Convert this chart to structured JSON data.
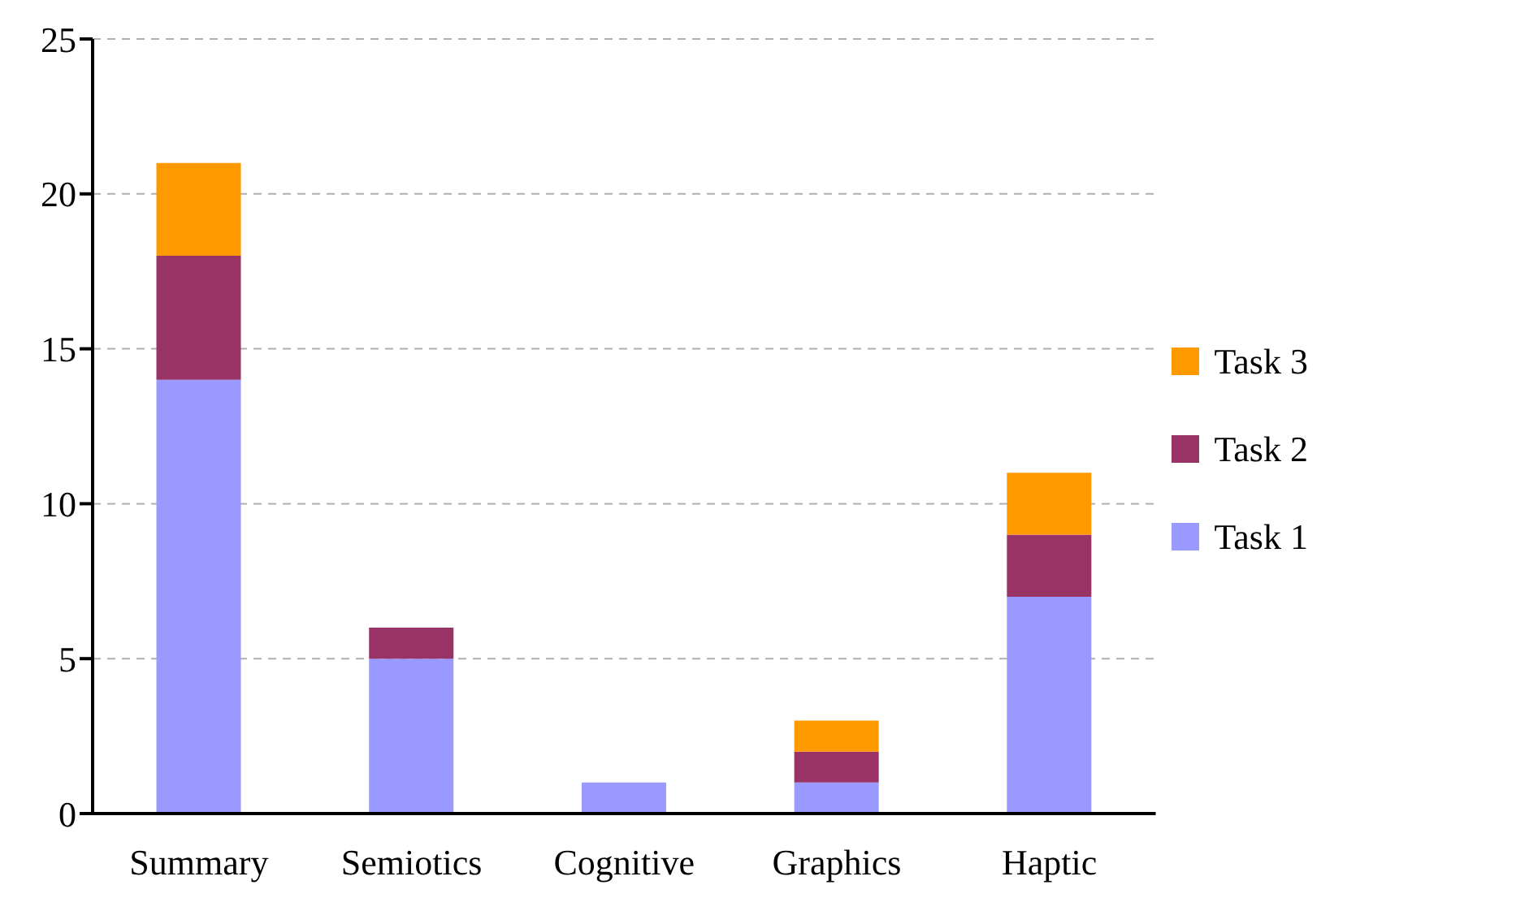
{
  "chart_data": {
    "type": "bar",
    "stacked": true,
    "categories": [
      "Summary",
      "Semiotics",
      "Cognitive",
      "Graphics",
      "Haptic"
    ],
    "series": [
      {
        "name": "Task 1",
        "color": "#9999ff",
        "values": [
          14,
          5,
          1,
          1,
          7
        ]
      },
      {
        "name": "Task 2",
        "color": "#993366",
        "values": [
          4,
          1,
          0,
          1,
          2
        ]
      },
      {
        "name": "Task 3",
        "color": "#ff9900",
        "values": [
          3,
          0,
          0,
          1,
          2
        ]
      }
    ],
    "ylim": [
      0,
      25
    ],
    "yticks": [
      0,
      5,
      10,
      15,
      20,
      25
    ],
    "grid": "y",
    "legend": "right"
  }
}
